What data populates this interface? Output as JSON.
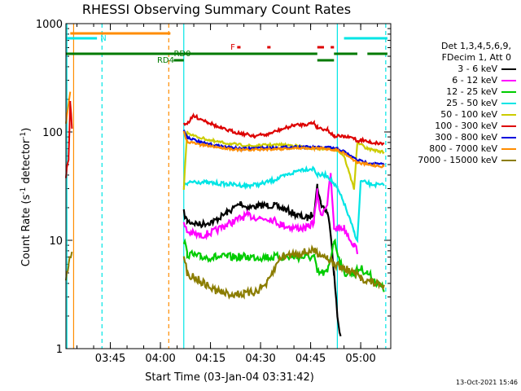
{
  "chart_data": {
    "type": "line",
    "title": "RHESSI Observing Summary Count Rates",
    "xlabel": "Start Time (03-Jan-04 03:31:42)",
    "ylabel_main": "Count Rate (s",
    "ylabel_sup1": "-1",
    "ylabel_mid": " detector",
    "ylabel_sup2": "-1",
    "ylabel_end": ")",
    "y_scale": "log",
    "ylim": [
      1,
      1000
    ],
    "y_ticks": [
      {
        "v": 1,
        "label": "1"
      },
      {
        "v": 10,
        "label": "10"
      },
      {
        "v": 100,
        "label": "100"
      },
      {
        "v": 1000,
        "label": "1000"
      }
    ],
    "x_ticks_minutes": [
      {
        "v": 3.0,
        "label": "03:45"
      },
      {
        "v": 3.0,
        "label": "04:00"
      }
    ],
    "x_ticks": [
      {
        "t": "03:45",
        "label": "03:45"
      },
      {
        "t": "04:00",
        "label": "04:00"
      },
      {
        "t": "04:15",
        "label": "04:15"
      },
      {
        "t": "04:30",
        "label": "04:30"
      },
      {
        "t": "04:45",
        "label": "04:45"
      },
      {
        "t": "05:00",
        "label": "05:00"
      }
    ],
    "xlim": [
      "03:31:42",
      "05:09:00"
    ],
    "legend_header": [
      "Det 1,3,4,5,6,9,",
      "FDecim 1, Att 0"
    ],
    "series": [
      {
        "name": "3 - 6 keV",
        "color": "#000000",
        "points": [
          [
            "04:07",
            18
          ],
          [
            "04:08",
            15
          ],
          [
            "04:12",
            14
          ],
          [
            "04:16",
            15
          ],
          [
            "04:20",
            18
          ],
          [
            "04:24",
            22
          ],
          [
            "04:26",
            20
          ],
          [
            "04:30",
            21
          ],
          [
            "04:34",
            21
          ],
          [
            "04:38",
            19
          ],
          [
            "04:41",
            17
          ],
          [
            "04:44",
            16
          ],
          [
            "04:46",
            18
          ],
          [
            "04:47",
            32
          ],
          [
            "04:48",
            22
          ],
          [
            "04:50",
            18
          ],
          [
            "04:51",
            12
          ],
          [
            "04:52",
            5
          ],
          [
            "04:53",
            2
          ],
          [
            "04:54",
            1.3
          ]
        ]
      },
      {
        "name": "6 - 12 keV",
        "color": "#ff00ff",
        "points": [
          [
            "04:07",
            14
          ],
          [
            "04:08",
            12
          ],
          [
            "04:12",
            11
          ],
          [
            "04:16",
            12
          ],
          [
            "04:20",
            14
          ],
          [
            "04:24",
            16
          ],
          [
            "04:26",
            17
          ],
          [
            "04:30",
            16
          ],
          [
            "04:33",
            16
          ],
          [
            "04:36",
            14
          ],
          [
            "04:40",
            13
          ],
          [
            "04:44",
            13
          ],
          [
            "04:46",
            15
          ],
          [
            "04:47",
            28
          ],
          [
            "04:48",
            17
          ],
          [
            "04:50",
            22
          ],
          [
            "04:51",
            40
          ],
          [
            "04:52",
            13
          ],
          [
            "04:55",
            13
          ],
          [
            "04:58",
            9
          ],
          [
            "04:59",
            8
          ]
        ]
      },
      {
        "name": "12 - 25 keV",
        "color": "#00cc00",
        "points": [
          [
            "04:07",
            10
          ],
          [
            "04:08",
            7.5
          ],
          [
            "04:12",
            7
          ],
          [
            "04:20",
            7
          ],
          [
            "04:30",
            7
          ],
          [
            "04:40",
            7
          ],
          [
            "04:46",
            7
          ],
          [
            "04:47",
            5
          ],
          [
            "04:50",
            5
          ],
          [
            "04:52",
            10
          ],
          [
            "04:55",
            5
          ],
          [
            "04:58",
            5
          ],
          [
            "05:00",
            5.5
          ],
          [
            "05:02",
            5
          ],
          [
            "05:05",
            4
          ],
          [
            "05:07",
            3.5
          ]
        ]
      },
      {
        "name": "25 - 50 keV",
        "color": "#00e5e5",
        "points": [
          [
            "04:07",
            32
          ],
          [
            "04:08",
            33
          ],
          [
            "04:10",
            35
          ],
          [
            "04:14",
            34
          ],
          [
            "04:20",
            33
          ],
          [
            "04:26",
            32
          ],
          [
            "04:30",
            33
          ],
          [
            "04:34",
            36
          ],
          [
            "04:38",
            40
          ],
          [
            "04:42",
            45
          ],
          [
            "04:46",
            46
          ],
          [
            "04:47",
            40
          ],
          [
            "04:50",
            40
          ],
          [
            "04:53",
            30
          ],
          [
            "04:55",
            22
          ],
          [
            "04:58",
            12
          ],
          [
            "04:59",
            10
          ],
          [
            "05:00",
            35
          ],
          [
            "05:03",
            33
          ],
          [
            "05:07",
            32
          ]
        ]
      },
      {
        "name": "50 - 100 keV",
        "color": "#cccc00",
        "points": [
          [
            "04:07",
            30
          ],
          [
            "04:08",
            100
          ],
          [
            "04:10",
            92
          ],
          [
            "04:16",
            82
          ],
          [
            "04:22",
            77
          ],
          [
            "04:28",
            74
          ],
          [
            "04:32",
            76
          ],
          [
            "04:36",
            76
          ],
          [
            "04:40",
            75
          ],
          [
            "04:44",
            72
          ],
          [
            "04:46",
            70
          ],
          [
            "04:50",
            70
          ],
          [
            "04:53",
            68
          ],
          [
            "04:55",
            60
          ],
          [
            "04:58",
            30
          ],
          [
            "04:59",
            80
          ],
          [
            "05:02",
            70
          ],
          [
            "05:07",
            65
          ]
        ]
      },
      {
        "name": "100 - 300 keV",
        "color": "#dd0000",
        "points": [
          [
            "04:07",
            120
          ],
          [
            "04:08",
            120
          ],
          [
            "04:10",
            140
          ],
          [
            "04:14",
            125
          ],
          [
            "04:18",
            108
          ],
          [
            "04:24",
            97
          ],
          [
            "04:28",
            92
          ],
          [
            "04:32",
            95
          ],
          [
            "04:36",
            105
          ],
          [
            "04:40",
            115
          ],
          [
            "04:44",
            118
          ],
          [
            "04:46",
            122
          ],
          [
            "04:47",
            110
          ],
          [
            "04:50",
            105
          ],
          [
            "04:52",
            92
          ],
          [
            "04:55",
            90
          ],
          [
            "04:58",
            88
          ],
          [
            "04:59",
            82
          ],
          [
            "05:00",
            85
          ],
          [
            "05:03",
            80
          ],
          [
            "05:07",
            78
          ]
        ]
      },
      {
        "name": "300 - 800 keV",
        "color": "#0000dd",
        "points": [
          [
            "04:07",
            105
          ],
          [
            "04:08",
            90
          ],
          [
            "04:12",
            80
          ],
          [
            "04:18",
            74
          ],
          [
            "04:24",
            70
          ],
          [
            "04:30",
            71
          ],
          [
            "04:36",
            72
          ],
          [
            "04:42",
            73
          ],
          [
            "04:46",
            72
          ],
          [
            "04:50",
            72
          ],
          [
            "04:53",
            70
          ],
          [
            "04:55",
            66
          ],
          [
            "04:57",
            60
          ],
          [
            "04:59",
            55
          ],
          [
            "05:02",
            52
          ],
          [
            "05:07",
            50
          ]
        ]
      },
      {
        "name": "800 - 7000 keV",
        "color": "#ff8c00",
        "points": [
          [
            "04:07",
            100
          ],
          [
            "04:08",
            82
          ],
          [
            "04:12",
            76
          ],
          [
            "04:18",
            72
          ],
          [
            "04:24",
            68
          ],
          [
            "04:30",
            69
          ],
          [
            "04:36",
            70
          ],
          [
            "04:42",
            71
          ],
          [
            "04:46",
            71
          ],
          [
            "04:50",
            70
          ],
          [
            "04:53",
            68
          ],
          [
            "04:55",
            64
          ],
          [
            "04:57",
            58
          ],
          [
            "04:59",
            52
          ],
          [
            "05:02",
            50
          ],
          [
            "05:07",
            48
          ]
        ]
      },
      {
        "name": "7000 - 15000 keV",
        "color": "#8b7d00",
        "points": [
          [
            "04:07",
            7
          ],
          [
            "04:08",
            5
          ],
          [
            "04:12",
            4.2
          ],
          [
            "04:16",
            3.5
          ],
          [
            "04:20",
            3.2
          ],
          [
            "04:25",
            3.2
          ],
          [
            "04:28",
            3.3
          ],
          [
            "04:32",
            4.0
          ],
          [
            "04:36",
            7.0
          ],
          [
            "04:40",
            7.5
          ],
          [
            "04:44",
            7.8
          ],
          [
            "04:46",
            8
          ],
          [
            "04:50",
            7
          ],
          [
            "04:52",
            6
          ],
          [
            "04:55",
            5.5
          ],
          [
            "04:58",
            5
          ],
          [
            "05:00",
            4.5
          ],
          [
            "05:04",
            4
          ],
          [
            "05:07",
            3.8
          ]
        ]
      }
    ],
    "early_spike": [
      [
        "03:31:42",
        40
      ],
      [
        "03:32:30",
        60
      ],
      [
        "03:33:00",
        200
      ],
      [
        "03:33:30",
        100
      ]
    ],
    "early_orange": [
      [
        "03:31:42",
        120
      ],
      [
        "03:33:00",
        230
      ]
    ],
    "early_green": [
      [
        "03:31:42",
        4.5
      ],
      [
        "03:32:30",
        6
      ],
      [
        "03:33:30",
        8
      ]
    ],
    "top_flags": [
      {
        "label": "N",
        "color": "#00e5e5",
        "segments": [
          [
            "03:31:42",
            "03:41:00"
          ],
          [
            "04:55:00",
            "05:08:00"
          ]
        ],
        "level": "top",
        "label_at": "03:42:00"
      },
      {
        "label": "",
        "color": "#ff8c00",
        "segments": [
          [
            "03:33:00",
            "04:03:00"
          ]
        ],
        "level": "top2"
      },
      {
        "label": "RD0",
        "color": "#007a00",
        "segments": [
          [
            "03:31:42",
            "04:07:00"
          ],
          [
            "04:07:00",
            "04:47:00"
          ],
          [
            "04:52:00",
            "04:59:00"
          ],
          [
            "05:02:00",
            "05:08:00"
          ]
        ],
        "level": "mid",
        "label_at": "04:04:00"
      },
      {
        "label": "RD4",
        "color": "#007a00",
        "segments": [
          [
            "04:04:00",
            "04:07:00"
          ],
          [
            "04:47:00",
            "04:52:00"
          ]
        ],
        "level": "low",
        "label_at": "03:59:00"
      },
      {
        "label": "F",
        "color": "#dd0000",
        "segments": [
          [
            "04:23:00",
            "04:24:00"
          ],
          [
            "04:32:00",
            "04:33:00"
          ],
          [
            "04:47:00",
            "04:49:00"
          ],
          [
            "04:51:00",
            "04:52:00"
          ]
        ],
        "level": "f",
        "label_at": "04:21:00"
      }
    ],
    "vlines": [
      {
        "t": "03:32:00",
        "color": "#00e5e5",
        "style": "solid"
      },
      {
        "t": "03:34:00",
        "color": "#ff8c00",
        "style": "solid"
      },
      {
        "t": "03:42:30",
        "color": "#00e5e5",
        "style": "dashed"
      },
      {
        "t": "04:02:30",
        "color": "#ff8c00",
        "style": "dashed"
      },
      {
        "t": "04:07:00",
        "color": "#00e5e5",
        "style": "solid"
      },
      {
        "t": "04:53:00",
        "color": "#00e5e5",
        "style": "solid"
      },
      {
        "t": "05:07:30",
        "color": "#00e5e5",
        "style": "dashed"
      }
    ]
  },
  "timestamp": "13-Oct-2021 15:46"
}
